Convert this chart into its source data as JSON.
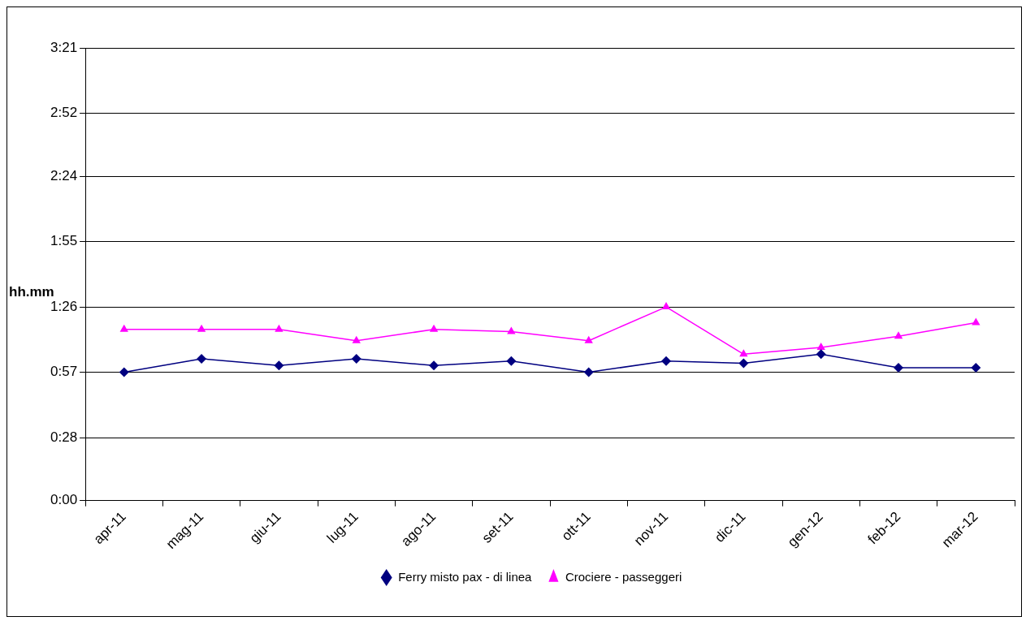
{
  "chart_data": {
    "type": "line",
    "ylabel": "hh.mm",
    "categories": [
      "apr-11",
      "mag-11",
      "giu-11",
      "lug-11",
      "ago-11",
      "set-11",
      "ott-11",
      "nov-11",
      "dic-11",
      "gen-12",
      "feb-12",
      "mar-12"
    ],
    "series": [
      {
        "name": "Ferry misto pax - di linea",
        "color": "#000080",
        "marker": "diamond",
        "values": [
          57,
          63,
          60,
          63,
          60,
          62,
          57,
          62,
          61,
          65,
          59,
          59
        ]
      },
      {
        "name": "Crociere - passeggeri",
        "color": "#ff00ff",
        "marker": "triangle",
        "values": [
          76,
          76,
          76,
          71,
          76,
          75,
          71,
          86,
          65,
          68,
          73,
          79
        ]
      }
    ],
    "ylim": [
      0,
      201
    ],
    "yticks": [
      {
        "value": 0,
        "label": "0:00"
      },
      {
        "value": 28,
        "label": "0:28"
      },
      {
        "value": 57,
        "label": "0:57"
      },
      {
        "value": 86,
        "label": "1:26"
      },
      {
        "value": 115,
        "label": "1:55"
      },
      {
        "value": 144,
        "label": "2:24"
      },
      {
        "value": 172,
        "label": "2:52"
      },
      {
        "value": 201,
        "label": "3:21"
      }
    ],
    "grid": "y",
    "legend": "bottom"
  }
}
